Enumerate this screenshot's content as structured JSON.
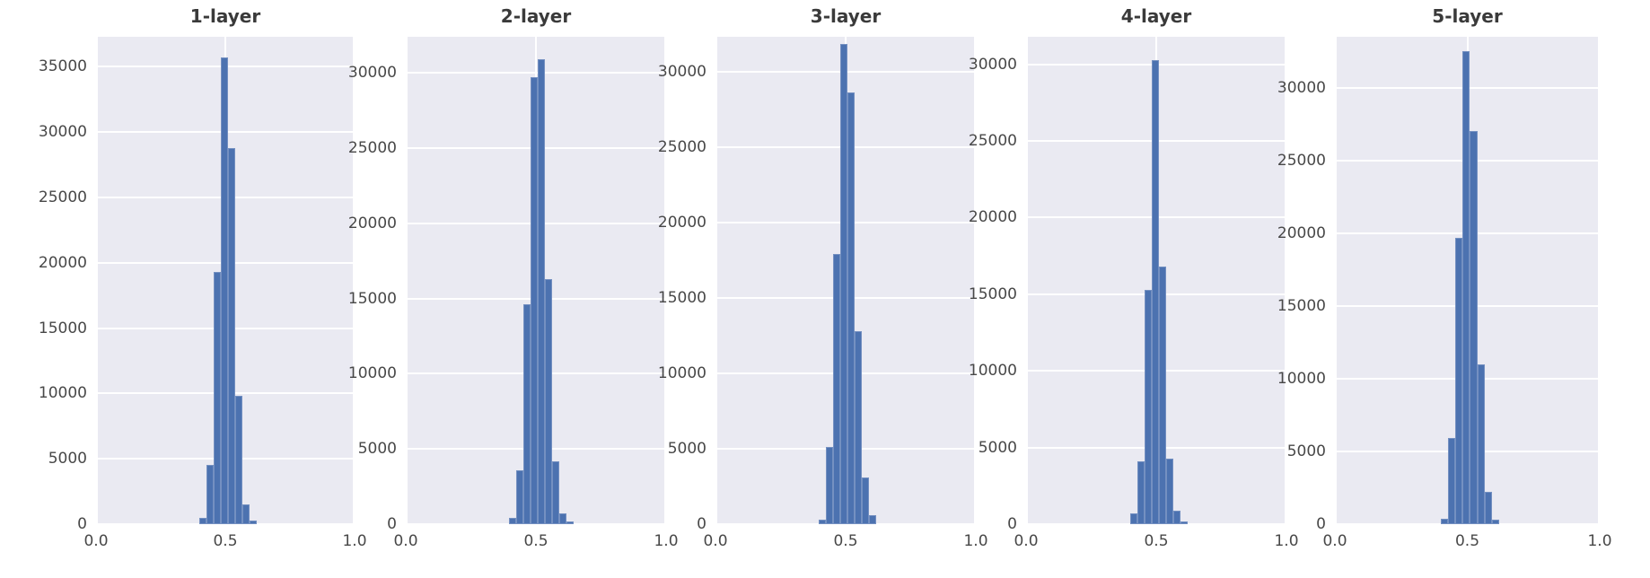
{
  "figure": {
    "kind": "matplotlib-seaborn-figure",
    "background": "#ffffff"
  },
  "colors": {
    "bar": "#4c72b0",
    "plot_background": "#eaeaf2",
    "gridline": "#ffffff",
    "tick_text": "#484848",
    "title_text": "#3a3a3a"
  },
  "chart_data": [
    {
      "type": "bar",
      "subtype": "histogram",
      "title": "1-layer",
      "xlabel": "",
      "ylabel": "",
      "xlim": [
        0.0,
        1.0
      ],
      "xticks": [
        {
          "value": 0.0,
          "label": "0.0"
        },
        {
          "value": 0.5,
          "label": "0.5"
        },
        {
          "value": 1.0,
          "label": "1.0"
        }
      ],
      "ylim": [
        0,
        37300
      ],
      "yticks": [
        0,
        5000,
        10000,
        15000,
        20000,
        25000,
        30000,
        35000
      ],
      "grid": true,
      "legend": false,
      "bin_start": 0.4,
      "bin_width": 0.0275,
      "counts": [
        500,
        4500,
        19300,
        35700,
        28800,
        9800,
        1500,
        250
      ]
    },
    {
      "type": "bar",
      "subtype": "histogram",
      "title": "2-layer",
      "xlabel": "",
      "ylabel": "",
      "xlim": [
        0.0,
        1.0
      ],
      "xticks": [
        {
          "value": 0.0,
          "label": "0.0"
        },
        {
          "value": 0.5,
          "label": "0.5"
        },
        {
          "value": 1.0,
          "label": "1.0"
        }
      ],
      "ylim": [
        0,
        32400
      ],
      "yticks": [
        0,
        5000,
        10000,
        15000,
        20000,
        25000,
        30000
      ],
      "grid": true,
      "legend": false,
      "bin_start": 0.3975,
      "bin_width": 0.0275,
      "counts": [
        400,
        3600,
        14600,
        29700,
        30900,
        16300,
        4200,
        700,
        200
      ]
    },
    {
      "type": "bar",
      "subtype": "histogram",
      "title": "3-layer",
      "xlabel": "",
      "ylabel": "",
      "xlim": [
        0.0,
        1.0
      ],
      "xticks": [
        {
          "value": 0.0,
          "label": "0.0"
        },
        {
          "value": 0.5,
          "label": "0.5"
        },
        {
          "value": 1.0,
          "label": "1.0"
        }
      ],
      "ylim": [
        0,
        32300
      ],
      "yticks": [
        0,
        5000,
        10000,
        15000,
        20000,
        25000,
        30000
      ],
      "grid": true,
      "legend": false,
      "bin_start": 0.3975,
      "bin_width": 0.0275,
      "counts": [
        300,
        5100,
        17900,
        31800,
        28600,
        12800,
        3100,
        600
      ]
    },
    {
      "type": "bar",
      "subtype": "histogram",
      "title": "4-layer",
      "xlabel": "",
      "ylabel": "",
      "xlim": [
        0.0,
        1.0
      ],
      "xticks": [
        {
          "value": 0.0,
          "label": "0.0"
        },
        {
          "value": 0.5,
          "label": "0.5"
        },
        {
          "value": 1.0,
          "label": "1.0"
        }
      ],
      "ylim": [
        0,
        31800
      ],
      "yticks": [
        0,
        5000,
        10000,
        15000,
        20000,
        25000,
        30000
      ],
      "grid": true,
      "legend": false,
      "bin_start": 0.4,
      "bin_width": 0.0275,
      "counts": [
        700,
        4100,
        15300,
        30300,
        16800,
        4300,
        900,
        200
      ]
    },
    {
      "type": "bar",
      "subtype": "histogram",
      "title": "5-layer",
      "xlabel": "",
      "ylabel": "",
      "xlim": [
        0.0,
        1.0
      ],
      "xticks": [
        {
          "value": 0.0,
          "label": "0.0"
        },
        {
          "value": 0.5,
          "label": "0.5"
        },
        {
          "value": 1.0,
          "label": "1.0"
        }
      ],
      "ylim": [
        0,
        33500
      ],
      "yticks": [
        0,
        5000,
        10000,
        15000,
        20000,
        25000,
        30000
      ],
      "grid": true,
      "legend": false,
      "bin_start": 0.4,
      "bin_width": 0.0275,
      "counts": [
        400,
        5900,
        19700,
        32500,
        27000,
        11000,
        2200,
        300
      ]
    }
  ]
}
